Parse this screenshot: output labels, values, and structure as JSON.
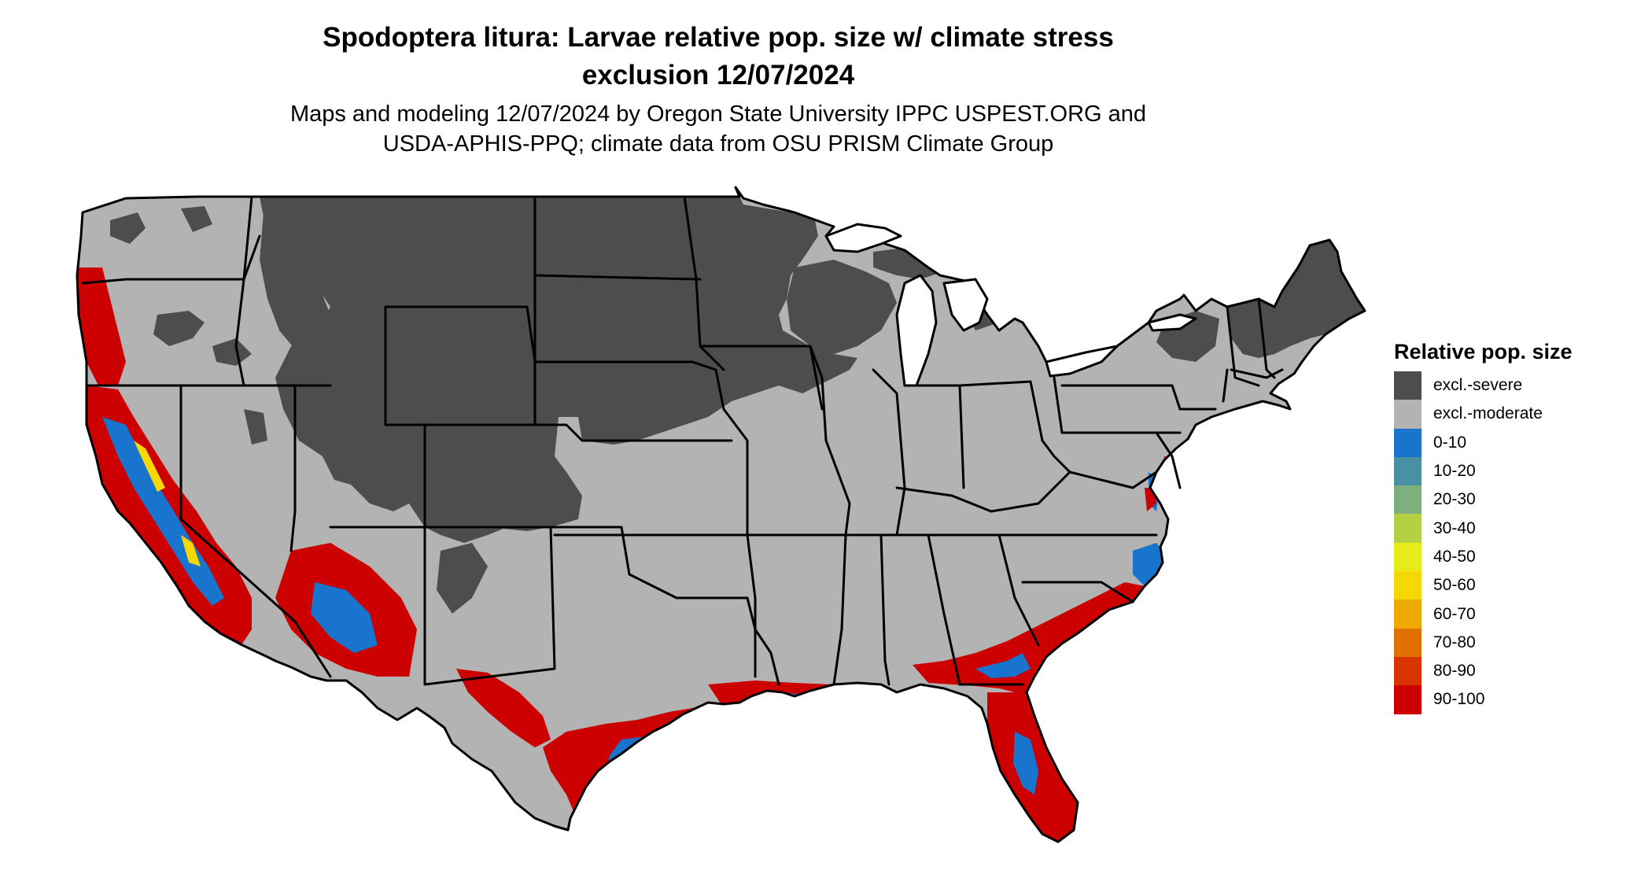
{
  "title_line1": "Spodoptera litura: Larvae relative pop. size w/ climate stress",
  "title_line2": "exclusion 12/07/2024",
  "subtitle_line1": "Maps and modeling 12/07/2024 by Oregon State University IPPC USPEST.ORG and",
  "subtitle_line2": "USDA-APHIS-PPQ; climate data from OSU PRISM Climate Group",
  "legend": {
    "title": "Relative pop. size",
    "items": [
      {
        "label": "excl.-severe",
        "color": "#4d4d4d"
      },
      {
        "label": "excl.-moderate",
        "color": "#b3b3b3"
      },
      {
        "label": "0-10",
        "color": "#1874cd"
      },
      {
        "label": "10-20",
        "color": "#4a90a4"
      },
      {
        "label": "20-30",
        "color": "#7eb07e"
      },
      {
        "label": "30-40",
        "color": "#b3d143"
      },
      {
        "label": "40-50",
        "color": "#e6ec1a"
      },
      {
        "label": "50-60",
        "color": "#f5d800"
      },
      {
        "label": "60-70",
        "color": "#eeaa00"
      },
      {
        "label": "70-80",
        "color": "#e07000"
      },
      {
        "label": "80-90",
        "color": "#d73400"
      },
      {
        "label": "90-100",
        "color": "#cc0000"
      }
    ]
  }
}
